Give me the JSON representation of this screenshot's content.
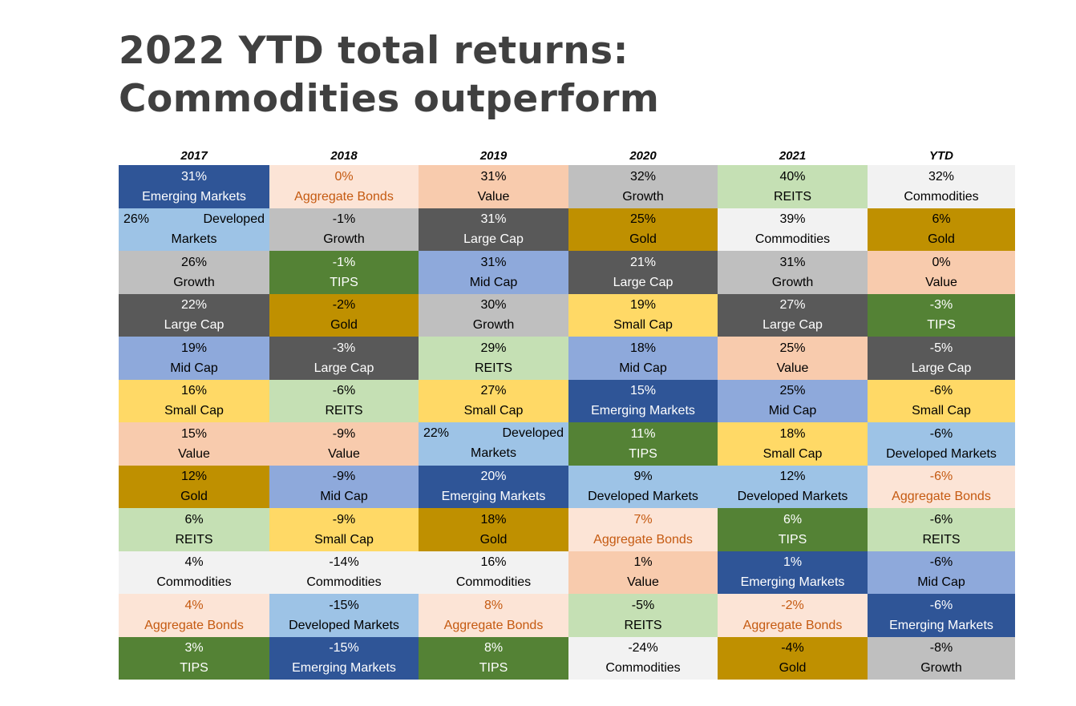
{
  "title": "2022 YTD total returns: Commodities outperform",
  "chart_data": {
    "type": "table",
    "columns": [
      "2017",
      "2018",
      "2019",
      "2020",
      "2021",
      "YTD"
    ],
    "rows": [
      [
        {
          "value": "31%",
          "label": "Emerging Markets"
        },
        {
          "value": "0%",
          "label": "Aggregate Bonds"
        },
        {
          "value": "31%",
          "label": "Value"
        },
        {
          "value": "32%",
          "label": "Growth"
        },
        {
          "value": "40%",
          "label": "REITS"
        },
        {
          "value": "32%",
          "label": "Commodities"
        }
      ],
      [
        {
          "value": "26%",
          "label": "Developed Markets"
        },
        {
          "value": "-1%",
          "label": "Growth"
        },
        {
          "value": "31%",
          "label": "Large Cap"
        },
        {
          "value": "25%",
          "label": "Gold"
        },
        {
          "value": "39%",
          "label": "Commodities"
        },
        {
          "value": "6%",
          "label": "Gold"
        }
      ],
      [
        {
          "value": "26%",
          "label": "Growth"
        },
        {
          "value": "-1%",
          "label": "TIPS"
        },
        {
          "value": "31%",
          "label": "Mid Cap"
        },
        {
          "value": "21%",
          "label": "Large Cap"
        },
        {
          "value": "31%",
          "label": "Growth"
        },
        {
          "value": "0%",
          "label": "Value"
        }
      ],
      [
        {
          "value": "22%",
          "label": "Large Cap"
        },
        {
          "value": "-2%",
          "label": "Gold"
        },
        {
          "value": "30%",
          "label": "Growth"
        },
        {
          "value": "19%",
          "label": "Small Cap"
        },
        {
          "value": "27%",
          "label": "Large Cap"
        },
        {
          "value": "-3%",
          "label": "TIPS"
        }
      ],
      [
        {
          "value": "19%",
          "label": "Mid Cap"
        },
        {
          "value": "-3%",
          "label": "Large Cap"
        },
        {
          "value": "29%",
          "label": "REITS"
        },
        {
          "value": "18%",
          "label": "Mid Cap"
        },
        {
          "value": "25%",
          "label": "Value"
        },
        {
          "value": "-5%",
          "label": "Large Cap"
        }
      ],
      [
        {
          "value": "16%",
          "label": "Small Cap"
        },
        {
          "value": "-6%",
          "label": "REITS"
        },
        {
          "value": "27%",
          "label": "Small Cap"
        },
        {
          "value": "15%",
          "label": "Emerging Markets"
        },
        {
          "value": "25%",
          "label": "Mid Cap"
        },
        {
          "value": "-6%",
          "label": "Small Cap"
        }
      ],
      [
        {
          "value": "15%",
          "label": "Value"
        },
        {
          "value": "-9%",
          "label": "Value"
        },
        {
          "value": "22%",
          "label": "Developed Markets"
        },
        {
          "value": "11%",
          "label": "TIPS"
        },
        {
          "value": "18%",
          "label": "Small Cap"
        },
        {
          "value": "-6%",
          "label": "Developed Markets"
        }
      ],
      [
        {
          "value": "12%",
          "label": "Gold"
        },
        {
          "value": "-9%",
          "label": "Mid Cap"
        },
        {
          "value": "20%",
          "label": "Emerging Markets"
        },
        {
          "value": "9%",
          "label": "Developed Markets"
        },
        {
          "value": "12%",
          "label": "Developed Markets"
        },
        {
          "value": "-6%",
          "label": "Aggregate Bonds"
        }
      ],
      [
        {
          "value": "6%",
          "label": "REITS"
        },
        {
          "value": "-9%",
          "label": "Small Cap"
        },
        {
          "value": "18%",
          "label": "Gold"
        },
        {
          "value": "7%",
          "label": "Aggregate Bonds"
        },
        {
          "value": "6%",
          "label": "TIPS"
        },
        {
          "value": "-6%",
          "label": "REITS"
        }
      ],
      [
        {
          "value": "4%",
          "label": "Commodities"
        },
        {
          "value": "-14%",
          "label": "Commodities"
        },
        {
          "value": "16%",
          "label": "Commodities"
        },
        {
          "value": "1%",
          "label": "Value"
        },
        {
          "value": "1%",
          "label": "Emerging Markets"
        },
        {
          "value": "-6%",
          "label": "Mid Cap"
        }
      ],
      [
        {
          "value": "4%",
          "label": "Aggregate Bonds"
        },
        {
          "value": "-15%",
          "label": "Developed Markets"
        },
        {
          "value": "8%",
          "label": "Aggregate Bonds"
        },
        {
          "value": "-5%",
          "label": "REITS"
        },
        {
          "value": "-2%",
          "label": "Aggregate Bonds"
        },
        {
          "value": "-6%",
          "label": "Emerging Markets"
        }
      ],
      [
        {
          "value": "3%",
          "label": "TIPS"
        },
        {
          "value": "-15%",
          "label": "Emerging Markets"
        },
        {
          "value": "8%",
          "label": "TIPS"
        },
        {
          "value": "-24%",
          "label": "Commodities"
        },
        {
          "value": "-4%",
          "label": "Gold"
        },
        {
          "value": "-8%",
          "label": "Growth"
        }
      ]
    ],
    "colors": {
      "Emerging Markets": {
        "bg": "#2F5597",
        "fg": "#FFFFFF"
      },
      "Aggregate Bonds": {
        "bg": "#FCE4D6",
        "fg": "#C55A11"
      },
      "Value": {
        "bg": "#F8CBAD",
        "fg": "#000000"
      },
      "Growth": {
        "bg": "#BFBFBF",
        "fg": "#000000"
      },
      "REITS": {
        "bg": "#C5E0B4",
        "fg": "#000000"
      },
      "Commodities": {
        "bg": "#F2F2F2",
        "fg": "#000000"
      },
      "Developed Markets": {
        "bg": "#9DC3E6",
        "fg": "#000000"
      },
      "Large Cap": {
        "bg": "#595959",
        "fg": "#FFFFFF"
      },
      "Gold": {
        "bg": "#BF9000",
        "fg": "#000000"
      },
      "TIPS": {
        "bg": "#548235",
        "fg": "#FFFFFF"
      },
      "Mid Cap": {
        "bg": "#8EA9DB",
        "fg": "#000000"
      },
      "Small Cap": {
        "bg": "#FFD966",
        "fg": "#000000"
      }
    }
  }
}
